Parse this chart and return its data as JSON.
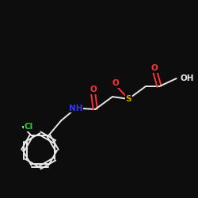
{
  "bg_color": "#0d0d0d",
  "bond_color": "#e8e8e8",
  "atom_colors": {
    "O": "#ff3333",
    "S": "#ccaa00",
    "N": "#3333ff",
    "Cl": "#33cc33",
    "C": "#e8e8e8",
    "H": "#e8e8e8"
  },
  "lw": 1.4,
  "fs": 7.5
}
